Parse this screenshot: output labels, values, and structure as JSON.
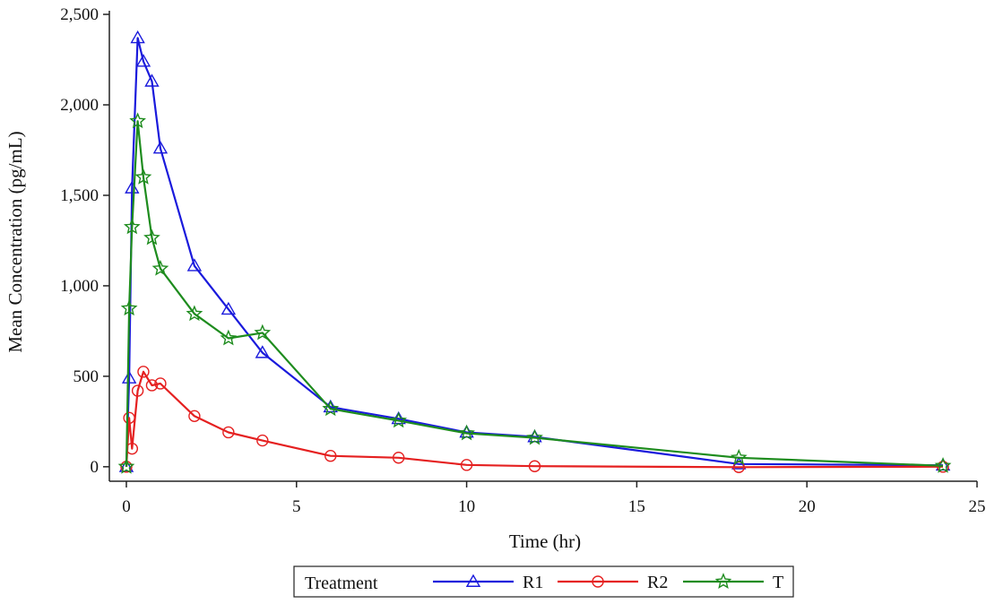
{
  "chart_data": {
    "type": "line",
    "title": "",
    "xlabel": "Time (hr)",
    "ylabel": "Mean Concentration (pg/mL)",
    "xlim": [
      -0.5,
      25
    ],
    "ylim": [
      -80,
      2520
    ],
    "xticks": [
      0,
      5,
      10,
      15,
      20,
      25
    ],
    "xtick_labels": [
      "0",
      "5",
      "10",
      "15",
      "20",
      "25"
    ],
    "yticks": [
      0,
      500,
      1000,
      1500,
      2000,
      2500
    ],
    "ytick_labels": [
      "0",
      "500",
      "1,000",
      "1,500",
      "2,000",
      "2,500"
    ],
    "grid": false,
    "legend": {
      "title": "Treatment",
      "position": "bottom-center"
    },
    "series": [
      {
        "name": "R1",
        "color": "#1a1adc",
        "marker": "triangle-icon",
        "x": [
          0,
          0.083,
          0.167,
          0.333,
          0.5,
          0.75,
          1,
          2,
          3,
          4,
          6,
          8,
          10,
          12,
          18,
          24
        ],
        "y": [
          0,
          490,
          1540,
          2370,
          2240,
          2130,
          1760,
          1110,
          870,
          630,
          330,
          265,
          190,
          165,
          15,
          8
        ]
      },
      {
        "name": "R2",
        "color": "#e52020",
        "marker": "circle-icon",
        "x": [
          0,
          0.083,
          0.167,
          0.333,
          0.5,
          0.75,
          1,
          2,
          3,
          4,
          6,
          8,
          10,
          12,
          18,
          24
        ],
        "y": [
          0,
          270,
          100,
          420,
          525,
          450,
          460,
          280,
          190,
          145,
          60,
          50,
          10,
          3,
          -2,
          0
        ]
      },
      {
        "name": "T",
        "color": "#1e8c1e",
        "marker": "star-icon",
        "x": [
          0,
          0.083,
          0.167,
          0.333,
          0.5,
          0.75,
          1,
          2,
          3,
          4,
          6,
          8,
          10,
          12,
          18,
          24
        ],
        "y": [
          0,
          875,
          1325,
          1910,
          1600,
          1265,
          1095,
          845,
          710,
          740,
          320,
          255,
          185,
          160,
          50,
          5
        ]
      }
    ]
  }
}
